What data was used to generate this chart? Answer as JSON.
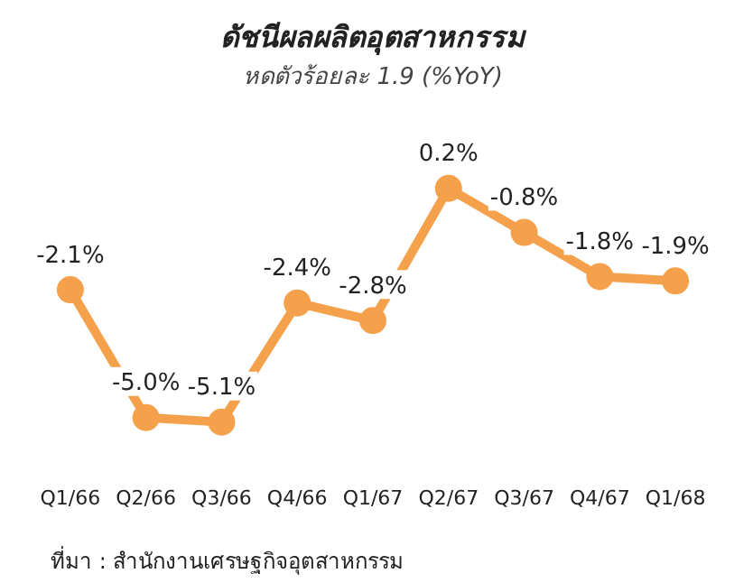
{
  "chart_data": {
    "type": "line",
    "title": "ดัชนีผลผลิตอุตสาหกรรม",
    "subtitle": "หดตัวร้อยละ 1.9 (%YoY)",
    "categories": [
      "Q1/66",
      "Q2/66",
      "Q3/66",
      "Q4/66",
      "Q1/67",
      "Q2/67",
      "Q3/67",
      "Q4/67",
      "Q1/68"
    ],
    "series": [
      {
        "color": "#f5a04a",
        "values": [
          -2.1,
          -5.0,
          -5.1,
          -2.4,
          -2.8,
          0.2,
          -0.8,
          -1.8,
          -1.9
        ],
        "value_labels": [
          "-2.1%",
          "-5.0%",
          "-5.1%",
          "-2.4%",
          "-2.8%",
          "0.2%",
          "-0.8%",
          "-1.8%",
          "-1.9%"
        ]
      }
    ],
    "marker": "circle",
    "line_style": "solid",
    "legend": false,
    "grid": false,
    "tick_labels": "x",
    "annotations": [
      "ที่มา : สำนักงานเศรษฐกิจอุตสาหกรรม"
    ]
  }
}
